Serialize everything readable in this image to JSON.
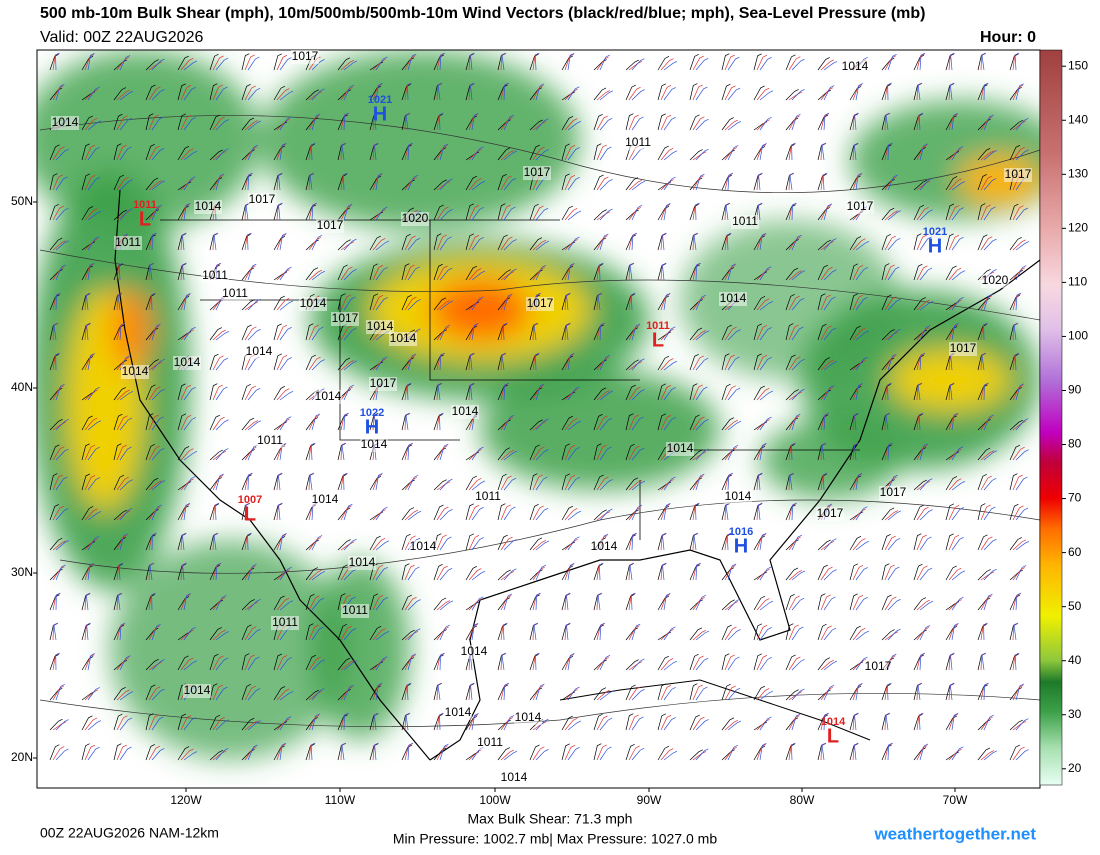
{
  "header": {
    "title": "500 mb-10m Bulk Shear (mph), 10m/500mb/500mb-10m Wind Vectors (black/red/blue; mph), Sea-Level Pressure (mb)",
    "valid": "Valid: 00Z 22AUG2026",
    "hour": "Hour: 0"
  },
  "map": {
    "lat_labels": [
      "50N",
      "40N",
      "30N",
      "20N"
    ],
    "lon_labels": [
      "120W",
      "110W",
      "100W",
      "90W",
      "80W",
      "70W"
    ],
    "pressure_labels": [
      "1017",
      "1014",
      "1014",
      "1011",
      "1017",
      "1017",
      "1014",
      "1017",
      "1017",
      "1020",
      "1011",
      "1017",
      "1011",
      "1011",
      "1011",
      "1014",
      "1017",
      "1014",
      "1020",
      "1017",
      "1014",
      "1014",
      "1014",
      "1014",
      "1017",
      "1014",
      "1017",
      "1014",
      "1014",
      "1014",
      "1011",
      "1014",
      "1011",
      "1014",
      "1017",
      "1014",
      "1017",
      "1014",
      "1014",
      "1014",
      "1011",
      "1011",
      "1014",
      "1017",
      "1014",
      "1014",
      "1014",
      "1011",
      "1014"
    ],
    "centers": [
      {
        "letter": "H",
        "value": "1021"
      },
      {
        "letter": "L",
        "value": "1011"
      },
      {
        "letter": "H",
        "value": "1021"
      },
      {
        "letter": "L",
        "value": "1011"
      },
      {
        "letter": "H",
        "value": "1022"
      },
      {
        "letter": "L",
        "value": "1007"
      },
      {
        "letter": "H",
        "value": "1016"
      },
      {
        "letter": "L",
        "value": "1014"
      }
    ]
  },
  "colorbar": {
    "ticks": [
      150,
      140,
      130,
      120,
      110,
      100,
      90,
      80,
      70,
      60,
      50,
      40,
      30,
      20
    ],
    "range": [
      17,
      153
    ]
  },
  "footer": {
    "run": "00Z 22AUG2026 NAM-12km",
    "max_shear": "Max Bulk Shear:  71.3 mph",
    "pressure_range": "Min Pressure: 1002.7 mb| Max Pressure: 1027.0 mb",
    "site": "weathertogether.net"
  }
}
